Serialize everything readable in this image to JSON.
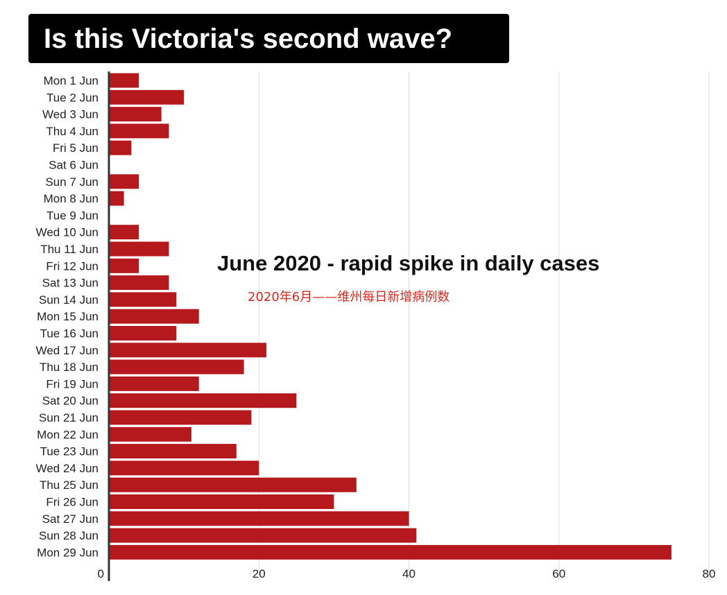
{
  "title": "Is this Victoria's second wave?",
  "colors": {
    "bar": "#b5191e",
    "grid": "#dddddd",
    "axis": "#333333",
    "title_bg": "#000000",
    "subtitle_zh": "#d42a1e"
  },
  "chart_data": {
    "type": "bar",
    "orientation": "horizontal",
    "title": "June 2020 - rapid spike in daily cases",
    "subtitle": "2020年6月——维州每日新增病例数",
    "xlabel": "",
    "ylabel": "",
    "xlim": [
      0,
      80
    ],
    "x_ticks": [
      0,
      20,
      40,
      60,
      80
    ],
    "grid": "vertical",
    "categories": [
      "Mon 1 Jun",
      "Tue 2 Jun",
      "Wed 3 Jun",
      "Thu 4 Jun",
      "Fri 5 Jun",
      "Sat 6 Jun",
      "Sun 7 Jun",
      "Mon 8 Jun",
      "Tue 9 Jun",
      "Wed 10 Jun",
      "Thu 11 Jun",
      "Fri 12 Jun",
      "Sat 13 Jun",
      "Sun 14 Jun",
      "Mon 15 Jun",
      "Tue 16 Jun",
      "Wed 17 Jun",
      "Thu 18 Jun",
      "Fri 19 Jun",
      "Sat 20 Jun",
      "Sun 21 Jun",
      "Mon 22 Jun",
      "Tue 23 Jun",
      "Wed 24 Jun",
      "Thu 25 Jun",
      "Fri 26 Jun",
      "Sat 27 Jun",
      "Sun 28 Jun",
      "Mon 29 Jun"
    ],
    "values": [
      4,
      10,
      7,
      8,
      3,
      0,
      4,
      2,
      0,
      4,
      8,
      4,
      8,
      9,
      12,
      9,
      21,
      18,
      12,
      25,
      19,
      11,
      17,
      20,
      33,
      30,
      40,
      41,
      75
    ]
  }
}
